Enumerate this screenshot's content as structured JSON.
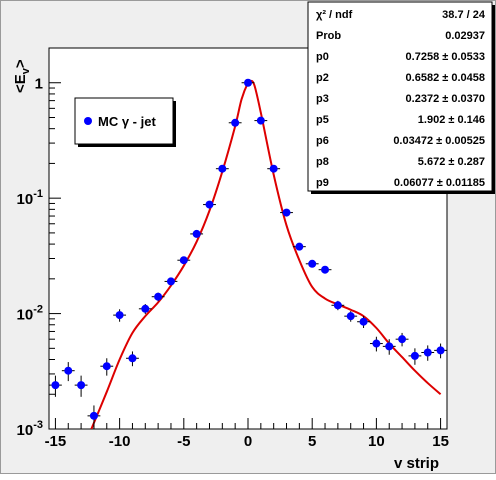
{
  "chart_data": {
    "type": "scatter",
    "xlabel": "v strip",
    "ylabel": "<E",
    "ylabel_sub": "v",
    "ylabel_close": ">",
    "xlim": [
      -15.5,
      15.5
    ],
    "ylim": [
      0.001,
      2
    ],
    "yscale": "log",
    "grid": false,
    "x_ticks": [
      "-15",
      "-10",
      "-5",
      "0",
      "5",
      "10",
      "15"
    ],
    "y_ticks": [
      {
        "base": "1",
        "exp": ""
      },
      {
        "base": "10",
        "exp": "-1"
      },
      {
        "base": "10",
        "exp": "-2"
      },
      {
        "base": "10",
        "exp": "-3"
      }
    ],
    "marker_color": "#0000ff",
    "fit_color": "#dd0000",
    "legend": {
      "label": "MC γ - jet",
      "placement": "left"
    },
    "series": [
      {
        "name": "MC γ - jet",
        "kind": "points",
        "x": [
          -15,
          -14,
          -13,
          -12,
          -11,
          -10,
          -9,
          -8,
          -7,
          -6,
          -5,
          -4,
          -3,
          -2,
          -1,
          0,
          1,
          2,
          3,
          4,
          5,
          6,
          7,
          8,
          9,
          10,
          11,
          12,
          13,
          14,
          15
        ],
        "y": [
          0.0024,
          0.0032,
          0.0024,
          0.0013,
          0.0035,
          0.0097,
          0.0041,
          0.011,
          0.014,
          0.019,
          0.029,
          0.049,
          0.088,
          0.18,
          0.45,
          1.0,
          0.47,
          0.18,
          0.075,
          0.038,
          0.027,
          0.024,
          0.0118,
          0.0095,
          0.0085,
          0.0055,
          0.0052,
          0.006,
          0.0043,
          0.0046,
          0.0048
        ],
        "yerr_lo": [
          0.0005,
          0.0006,
          0.0005,
          0.0003,
          0.0006,
          0.0012,
          0.0006,
          0.0011,
          0.0012,
          0.0014,
          0.0018,
          0.0025,
          0.003,
          0.006,
          0.015,
          0.02,
          0.015,
          0.006,
          0.003,
          0.0022,
          0.0018,
          0.0016,
          0.0011,
          0.001,
          0.001,
          0.0008,
          0.0008,
          0.0008,
          0.0007,
          0.0007,
          0.0007
        ]
      },
      {
        "name": "",
        "kind": "fit",
        "x": [
          -12.2,
          -11,
          -10,
          -9,
          -8,
          -7,
          -6,
          -5,
          -4,
          -3,
          -2,
          -1,
          -0.5,
          0,
          0.2,
          0.5,
          1,
          2,
          3,
          4,
          5,
          6,
          7,
          8,
          9,
          10,
          11,
          12,
          13,
          14,
          15
        ],
        "y": [
          0.001,
          0.0021,
          0.004,
          0.0068,
          0.0095,
          0.0125,
          0.0175,
          0.026,
          0.042,
          0.078,
          0.17,
          0.42,
          0.72,
          1.0,
          1.04,
          0.95,
          0.55,
          0.16,
          0.058,
          0.029,
          0.017,
          0.0135,
          0.012,
          0.0108,
          0.0095,
          0.0075,
          0.0055,
          0.0042,
          0.0032,
          0.0025,
          0.002
        ]
      }
    ]
  },
  "stats": {
    "rows": [
      {
        "label": "χ² / ndf",
        "value": "38.7 / 24"
      },
      {
        "label": "Prob",
        "value": "0.02937"
      },
      {
        "label": "p0",
        "value": "0.7258 ± 0.0533"
      },
      {
        "label": "p2",
        "value": "0.6582 ± 0.0458"
      },
      {
        "label": "p3",
        "value": "0.2372 ± 0.0370"
      },
      {
        "label": "p5",
        "value": "1.902 ± 0.146"
      },
      {
        "label": "p6",
        "value": "0.03472 ± 0.00525"
      },
      {
        "label": "p8",
        "value": "5.672 ± 0.287"
      },
      {
        "label": "p9",
        "value": "0.06077 ± 0.01185"
      }
    ]
  }
}
